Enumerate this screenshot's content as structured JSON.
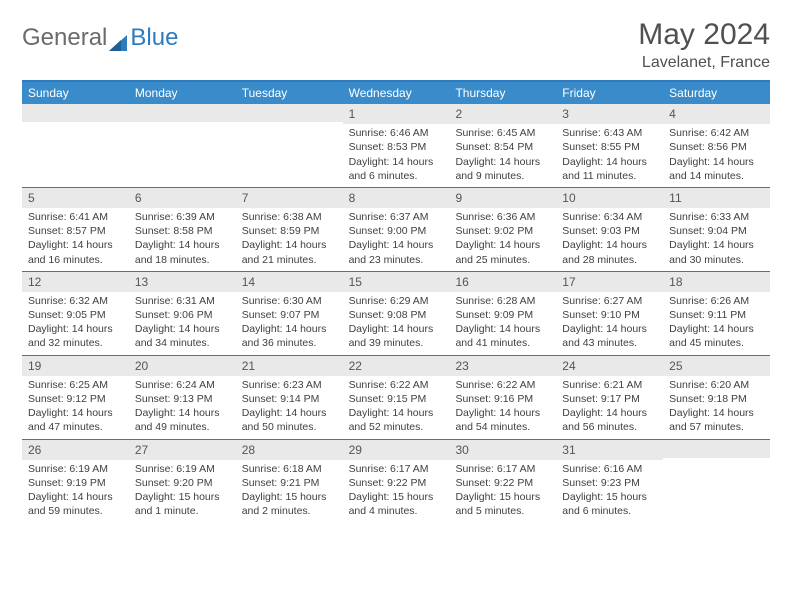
{
  "brand": {
    "left": "General",
    "right": "Blue"
  },
  "title": "May 2024",
  "location": "Lavelanet, France",
  "colors": {
    "header_bar": "#3a8bc9",
    "accent_line": "#2f7bbf",
    "daynum_bg": "#e9e9e9",
    "text": "#404040",
    "logo_gray": "#6b6b6b"
  },
  "weekdays": [
    "Sunday",
    "Monday",
    "Tuesday",
    "Wednesday",
    "Thursday",
    "Friday",
    "Saturday"
  ],
  "weeks": [
    [
      {
        "n": "",
        "sr": "",
        "ss": "",
        "dl": ""
      },
      {
        "n": "",
        "sr": "",
        "ss": "",
        "dl": ""
      },
      {
        "n": "",
        "sr": "",
        "ss": "",
        "dl": ""
      },
      {
        "n": "1",
        "sr": "Sunrise: 6:46 AM",
        "ss": "Sunset: 8:53 PM",
        "dl": "Daylight: 14 hours and 6 minutes."
      },
      {
        "n": "2",
        "sr": "Sunrise: 6:45 AM",
        "ss": "Sunset: 8:54 PM",
        "dl": "Daylight: 14 hours and 9 minutes."
      },
      {
        "n": "3",
        "sr": "Sunrise: 6:43 AM",
        "ss": "Sunset: 8:55 PM",
        "dl": "Daylight: 14 hours and 11 minutes."
      },
      {
        "n": "4",
        "sr": "Sunrise: 6:42 AM",
        "ss": "Sunset: 8:56 PM",
        "dl": "Daylight: 14 hours and 14 minutes."
      }
    ],
    [
      {
        "n": "5",
        "sr": "Sunrise: 6:41 AM",
        "ss": "Sunset: 8:57 PM",
        "dl": "Daylight: 14 hours and 16 minutes."
      },
      {
        "n": "6",
        "sr": "Sunrise: 6:39 AM",
        "ss": "Sunset: 8:58 PM",
        "dl": "Daylight: 14 hours and 18 minutes."
      },
      {
        "n": "7",
        "sr": "Sunrise: 6:38 AM",
        "ss": "Sunset: 8:59 PM",
        "dl": "Daylight: 14 hours and 21 minutes."
      },
      {
        "n": "8",
        "sr": "Sunrise: 6:37 AM",
        "ss": "Sunset: 9:00 PM",
        "dl": "Daylight: 14 hours and 23 minutes."
      },
      {
        "n": "9",
        "sr": "Sunrise: 6:36 AM",
        "ss": "Sunset: 9:02 PM",
        "dl": "Daylight: 14 hours and 25 minutes."
      },
      {
        "n": "10",
        "sr": "Sunrise: 6:34 AM",
        "ss": "Sunset: 9:03 PM",
        "dl": "Daylight: 14 hours and 28 minutes."
      },
      {
        "n": "11",
        "sr": "Sunrise: 6:33 AM",
        "ss": "Sunset: 9:04 PM",
        "dl": "Daylight: 14 hours and 30 minutes."
      }
    ],
    [
      {
        "n": "12",
        "sr": "Sunrise: 6:32 AM",
        "ss": "Sunset: 9:05 PM",
        "dl": "Daylight: 14 hours and 32 minutes."
      },
      {
        "n": "13",
        "sr": "Sunrise: 6:31 AM",
        "ss": "Sunset: 9:06 PM",
        "dl": "Daylight: 14 hours and 34 minutes."
      },
      {
        "n": "14",
        "sr": "Sunrise: 6:30 AM",
        "ss": "Sunset: 9:07 PM",
        "dl": "Daylight: 14 hours and 36 minutes."
      },
      {
        "n": "15",
        "sr": "Sunrise: 6:29 AM",
        "ss": "Sunset: 9:08 PM",
        "dl": "Daylight: 14 hours and 39 minutes."
      },
      {
        "n": "16",
        "sr": "Sunrise: 6:28 AM",
        "ss": "Sunset: 9:09 PM",
        "dl": "Daylight: 14 hours and 41 minutes."
      },
      {
        "n": "17",
        "sr": "Sunrise: 6:27 AM",
        "ss": "Sunset: 9:10 PM",
        "dl": "Daylight: 14 hours and 43 minutes."
      },
      {
        "n": "18",
        "sr": "Sunrise: 6:26 AM",
        "ss": "Sunset: 9:11 PM",
        "dl": "Daylight: 14 hours and 45 minutes."
      }
    ],
    [
      {
        "n": "19",
        "sr": "Sunrise: 6:25 AM",
        "ss": "Sunset: 9:12 PM",
        "dl": "Daylight: 14 hours and 47 minutes."
      },
      {
        "n": "20",
        "sr": "Sunrise: 6:24 AM",
        "ss": "Sunset: 9:13 PM",
        "dl": "Daylight: 14 hours and 49 minutes."
      },
      {
        "n": "21",
        "sr": "Sunrise: 6:23 AM",
        "ss": "Sunset: 9:14 PM",
        "dl": "Daylight: 14 hours and 50 minutes."
      },
      {
        "n": "22",
        "sr": "Sunrise: 6:22 AM",
        "ss": "Sunset: 9:15 PM",
        "dl": "Daylight: 14 hours and 52 minutes."
      },
      {
        "n": "23",
        "sr": "Sunrise: 6:22 AM",
        "ss": "Sunset: 9:16 PM",
        "dl": "Daylight: 14 hours and 54 minutes."
      },
      {
        "n": "24",
        "sr": "Sunrise: 6:21 AM",
        "ss": "Sunset: 9:17 PM",
        "dl": "Daylight: 14 hours and 56 minutes."
      },
      {
        "n": "25",
        "sr": "Sunrise: 6:20 AM",
        "ss": "Sunset: 9:18 PM",
        "dl": "Daylight: 14 hours and 57 minutes."
      }
    ],
    [
      {
        "n": "26",
        "sr": "Sunrise: 6:19 AM",
        "ss": "Sunset: 9:19 PM",
        "dl": "Daylight: 14 hours and 59 minutes."
      },
      {
        "n": "27",
        "sr": "Sunrise: 6:19 AM",
        "ss": "Sunset: 9:20 PM",
        "dl": "Daylight: 15 hours and 1 minute."
      },
      {
        "n": "28",
        "sr": "Sunrise: 6:18 AM",
        "ss": "Sunset: 9:21 PM",
        "dl": "Daylight: 15 hours and 2 minutes."
      },
      {
        "n": "29",
        "sr": "Sunrise: 6:17 AM",
        "ss": "Sunset: 9:22 PM",
        "dl": "Daylight: 15 hours and 4 minutes."
      },
      {
        "n": "30",
        "sr": "Sunrise: 6:17 AM",
        "ss": "Sunset: 9:22 PM",
        "dl": "Daylight: 15 hours and 5 minutes."
      },
      {
        "n": "31",
        "sr": "Sunrise: 6:16 AM",
        "ss": "Sunset: 9:23 PM",
        "dl": "Daylight: 15 hours and 6 minutes."
      },
      {
        "n": "",
        "sr": "",
        "ss": "",
        "dl": ""
      }
    ]
  ]
}
